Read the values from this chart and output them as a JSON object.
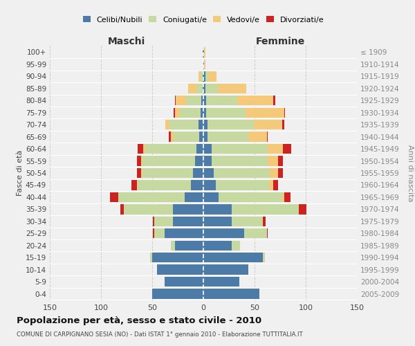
{
  "age_groups": [
    "0-4",
    "5-9",
    "10-14",
    "15-19",
    "20-24",
    "25-29",
    "30-34",
    "35-39",
    "40-44",
    "45-49",
    "50-54",
    "55-59",
    "60-64",
    "65-69",
    "70-74",
    "75-79",
    "80-84",
    "85-89",
    "90-94",
    "95-99",
    "100+"
  ],
  "birth_years": [
    "2005-2009",
    "2000-2004",
    "1995-1999",
    "1990-1994",
    "1985-1989",
    "1980-1984",
    "1975-1979",
    "1970-1974",
    "1965-1969",
    "1960-1964",
    "1955-1959",
    "1950-1954",
    "1945-1949",
    "1940-1944",
    "1935-1939",
    "1930-1934",
    "1925-1929",
    "1920-1924",
    "1915-1919",
    "1910-1914",
    "≤ 1909"
  ],
  "colors": {
    "celibi": "#4b7ba6",
    "coniugati": "#c5d9a0",
    "vedovi": "#f5c97a",
    "divorziati": "#cc2222"
  },
  "maschi": {
    "celibi": [
      50,
      38,
      45,
      50,
      28,
      38,
      30,
      30,
      18,
      12,
      10,
      8,
      7,
      4,
      5,
      3,
      2,
      1,
      1,
      0,
      1
    ],
    "coniugati": [
      0,
      0,
      0,
      2,
      4,
      10,
      18,
      48,
      65,
      52,
      50,
      52,
      50,
      25,
      28,
      20,
      15,
      6,
      2,
      0,
      0
    ],
    "vedovi": [
      0,
      0,
      0,
      0,
      0,
      0,
      0,
      0,
      0,
      1,
      1,
      1,
      2,
      3,
      4,
      5,
      10,
      8,
      2,
      0,
      0
    ],
    "divorziati": [
      0,
      0,
      0,
      0,
      0,
      1,
      1,
      3,
      8,
      5,
      4,
      4,
      5,
      2,
      0,
      1,
      1,
      0,
      0,
      0,
      0
    ]
  },
  "femmine": {
    "celibi": [
      55,
      35,
      44,
      58,
      28,
      40,
      28,
      28,
      15,
      12,
      10,
      8,
      8,
      4,
      4,
      3,
      3,
      2,
      2,
      1,
      1
    ],
    "coniugati": [
      0,
      0,
      0,
      2,
      8,
      22,
      30,
      65,
      62,
      52,
      55,
      55,
      55,
      40,
      45,
      38,
      30,
      12,
      3,
      0,
      0
    ],
    "vedovi": [
      0,
      0,
      0,
      0,
      0,
      0,
      0,
      0,
      2,
      4,
      8,
      10,
      15,
      18,
      28,
      38,
      35,
      28,
      8,
      1,
      1
    ],
    "divorziati": [
      0,
      0,
      0,
      0,
      0,
      1,
      3,
      8,
      6,
      5,
      5,
      5,
      8,
      1,
      2,
      1,
      2,
      0,
      0,
      0,
      0
    ]
  },
  "xlim": 150,
  "title": "Popolazione per età, sesso e stato civile - 2010",
  "subtitle": "COMUNE DI CARPIGNANO SESIA (NO) - Dati ISTAT 1° gennaio 2010 - Elaborazione TUTTITALIA.IT",
  "ylabel_left": "Fasce di età",
  "ylabel_right": "Anni di nascita",
  "xlabel_maschi": "Maschi",
  "xlabel_femmine": "Femmine",
  "bg_color": "#f0f0f0",
  "grid_color": "#cccccc"
}
